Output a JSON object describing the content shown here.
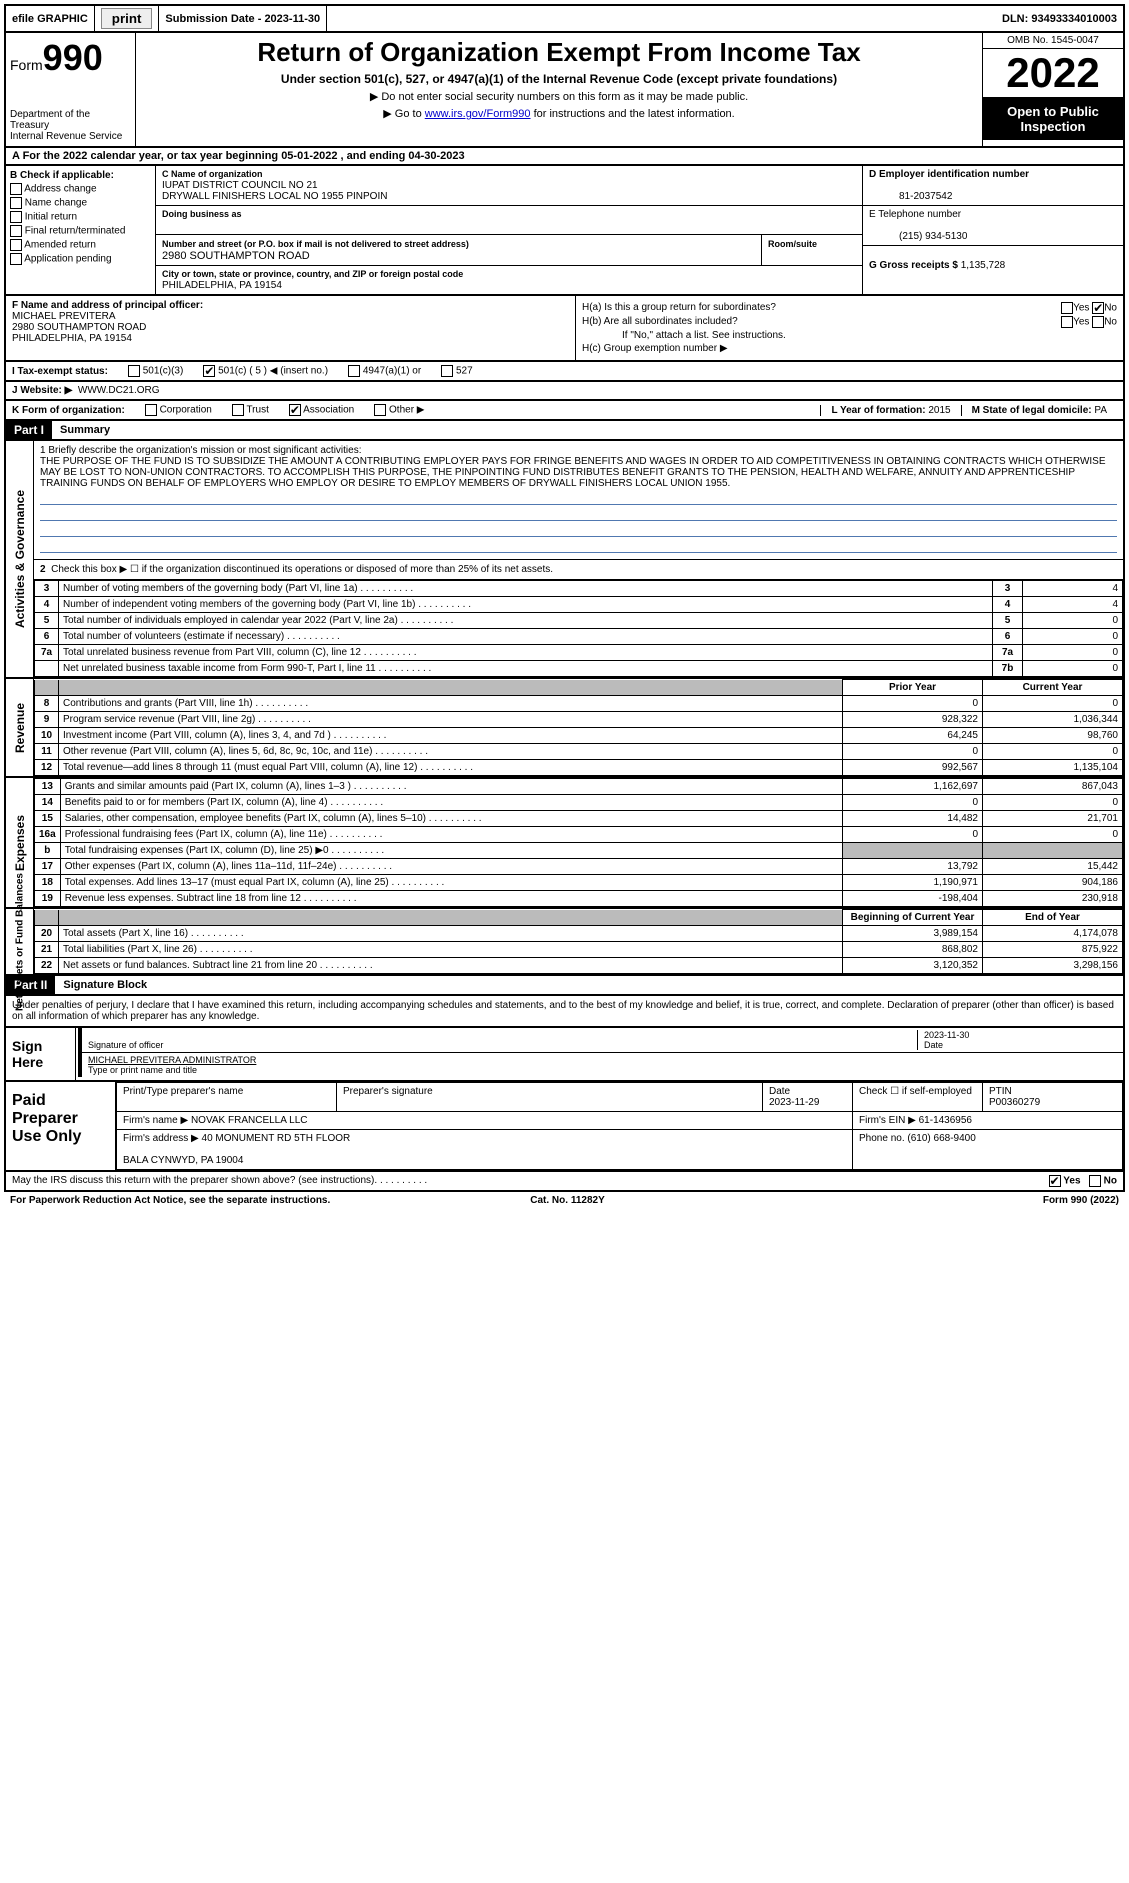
{
  "topbar": {
    "efile": "efile GRAPHIC",
    "print": "print",
    "subdate_label": "Submission Date - 2023-11-30",
    "dln": "DLN: 93493334010003"
  },
  "header": {
    "form": "Form",
    "num": "990",
    "title": "Return of Organization Exempt From Income Tax",
    "sub": "Under section 501(c), 527, or 4947(a)(1) of the Internal Revenue Code (except private foundations)",
    "note1": "▶ Do not enter social security numbers on this form as it may be made public.",
    "note2_pre": "▶ Go to ",
    "note2_link": "www.irs.gov/Form990",
    "note2_post": " for instructions and the latest information.",
    "dept": "Department of the Treasury\nInternal Revenue Service",
    "omb": "OMB No. 1545-0047",
    "year": "2022",
    "open": "Open to Public Inspection"
  },
  "rowA": "A  For the 2022 calendar year, or tax year beginning 05-01-2022   , and ending 04-30-2023",
  "B": {
    "label": "B Check if applicable:",
    "addr": "Address change",
    "name": "Name change",
    "initial": "Initial return",
    "final": "Final return/terminated",
    "amend": "Amended return",
    "app": "Application pending"
  },
  "C": {
    "label": "C Name of organization",
    "name": "IUPAT DISTRICT COUNCIL NO 21\nDRYWALL FINISHERS LOCAL NO 1955 PINPOIN",
    "dba_label": "Doing business as",
    "dba": "",
    "addr_label": "Number and street (or P.O. box if mail is not delivered to street address)",
    "room_label": "Room/suite",
    "addr": "2980 SOUTHAMPTON ROAD",
    "city_label": "City or town, state or province, country, and ZIP or foreign postal code",
    "city": "PHILADELPHIA, PA  19154"
  },
  "D": {
    "label": "D Employer identification number",
    "val": "81-2037542"
  },
  "E": {
    "label": "E Telephone number",
    "val": "(215) 934-5130"
  },
  "G": {
    "label": "G Gross receipts $",
    "val": "1,135,728"
  },
  "F": {
    "label": "F  Name and address of principal officer:",
    "name": "MICHAEL PREVITERA",
    "addr": "2980 SOUTHAMPTON ROAD\nPHILADELPHIA, PA  19154"
  },
  "H": {
    "a": "H(a)  Is this a group return for subordinates?",
    "b": "H(b)  Are all subordinates included?",
    "note": "If \"No,\" attach a list. See instructions.",
    "c": "H(c)  Group exemption number ▶"
  },
  "I": {
    "label": "I   Tax-exempt status:",
    "c3": "501(c)(3)",
    "c_pre": "501(c) (",
    "c_val": "5",
    "c_post": ") ◀ (insert no.)",
    "a1": "4947(a)(1) or",
    "s527": "527"
  },
  "J": {
    "label": "J   Website: ▶",
    "val": "WWW.DC21.ORG"
  },
  "K": {
    "label": "K Form of organization:",
    "corp": "Corporation",
    "trust": "Trust",
    "assoc": "Association",
    "other": "Other ▶"
  },
  "L": {
    "label": "L Year of formation:",
    "val": "2015"
  },
  "M": {
    "label": "M State of legal domicile:",
    "val": "PA"
  },
  "part1": {
    "hdr": "Part I",
    "title": "Summary",
    "mission_label": "1   Briefly describe the organization's mission or most significant activities:",
    "mission": "THE PURPOSE OF THE FUND IS TO SUBSIDIZE THE AMOUNT A CONTRIBUTING EMPLOYER PAYS FOR FRINGE BENEFITS AND WAGES IN ORDER TO AID COMPETITIVENESS IN OBTAINING CONTRACTS WHICH OTHERWISE MAY BE LOST TO NON-UNION CONTRACTORS. TO ACCOMPLISH THIS PURPOSE, THE PINPOINTING FUND DISTRIBUTES BENEFIT GRANTS TO THE PENSION, HEALTH AND WELFARE, ANNUITY AND APPRENTICESHIP TRAINING FUNDS ON BEHALF OF EMPLOYERS WHO EMPLOY OR DESIRE TO EMPLOY MEMBERS OF DRYWALL FINISHERS LOCAL UNION 1955."
  },
  "gov": {
    "vlabel": "Activities & Governance",
    "l2": "Check this box ▶ ☐ if the organization discontinued its operations or disposed of more than 25% of its net assets.",
    "rows": [
      {
        "n": "3",
        "desc": "Number of voting members of the governing body (Part VI, line 1a)",
        "box": "3",
        "val": "4"
      },
      {
        "n": "4",
        "desc": "Number of independent voting members of the governing body (Part VI, line 1b)",
        "box": "4",
        "val": "4"
      },
      {
        "n": "5",
        "desc": "Total number of individuals employed in calendar year 2022 (Part V, line 2a)",
        "box": "5",
        "val": "0"
      },
      {
        "n": "6",
        "desc": "Total number of volunteers (estimate if necessary)",
        "box": "6",
        "val": "0"
      },
      {
        "n": "7a",
        "desc": "Total unrelated business revenue from Part VIII, column (C), line 12",
        "box": "7a",
        "val": "0"
      },
      {
        "n": "",
        "desc": "Net unrelated business taxable income from Form 990-T, Part I, line 11",
        "box": "7b",
        "val": "0"
      }
    ]
  },
  "rev": {
    "vlabel": "Revenue",
    "hdr_prior": "Prior Year",
    "hdr_curr": "Current Year",
    "rows": [
      {
        "n": "8",
        "desc": "Contributions and grants (Part VIII, line 1h)",
        "p": "0",
        "c": "0"
      },
      {
        "n": "9",
        "desc": "Program service revenue (Part VIII, line 2g)",
        "p": "928,322",
        "c": "1,036,344"
      },
      {
        "n": "10",
        "desc": "Investment income (Part VIII, column (A), lines 3, 4, and 7d )",
        "p": "64,245",
        "c": "98,760"
      },
      {
        "n": "11",
        "desc": "Other revenue (Part VIII, column (A), lines 5, 6d, 8c, 9c, 10c, and 11e)",
        "p": "0",
        "c": "0"
      },
      {
        "n": "12",
        "desc": "Total revenue—add lines 8 through 11 (must equal Part VIII, column (A), line 12)",
        "p": "992,567",
        "c": "1,135,104"
      }
    ]
  },
  "exp": {
    "vlabel": "Expenses",
    "rows": [
      {
        "n": "13",
        "desc": "Grants and similar amounts paid (Part IX, column (A), lines 1–3 )",
        "p": "1,162,697",
        "c": "867,043"
      },
      {
        "n": "14",
        "desc": "Benefits paid to or for members (Part IX, column (A), line 4)",
        "p": "0",
        "c": "0"
      },
      {
        "n": "15",
        "desc": "Salaries, other compensation, employee benefits (Part IX, column (A), lines 5–10)",
        "p": "14,482",
        "c": "21,701"
      },
      {
        "n": "16a",
        "desc": "Professional fundraising fees (Part IX, column (A), line 11e)",
        "p": "0",
        "c": "0"
      },
      {
        "n": "b",
        "desc": "Total fundraising expenses (Part IX, column (D), line 25) ▶0",
        "p": "",
        "c": "",
        "grey": true
      },
      {
        "n": "17",
        "desc": "Other expenses (Part IX, column (A), lines 11a–11d, 11f–24e)",
        "p": "13,792",
        "c": "15,442"
      },
      {
        "n": "18",
        "desc": "Total expenses. Add lines 13–17 (must equal Part IX, column (A), line 25)",
        "p": "1,190,971",
        "c": "904,186"
      },
      {
        "n": "19",
        "desc": "Revenue less expenses. Subtract line 18 from line 12",
        "p": "-198,404",
        "c": "230,918"
      }
    ]
  },
  "net": {
    "vlabel": "Net Assets or Fund Balances",
    "hdr_beg": "Beginning of Current Year",
    "hdr_end": "End of Year",
    "rows": [
      {
        "n": "20",
        "desc": "Total assets (Part X, line 16)",
        "p": "3,989,154",
        "c": "4,174,078"
      },
      {
        "n": "21",
        "desc": "Total liabilities (Part X, line 26)",
        "p": "868,802",
        "c": "875,922"
      },
      {
        "n": "22",
        "desc": "Net assets or fund balances. Subtract line 21 from line 20",
        "p": "3,120,352",
        "c": "3,298,156"
      }
    ]
  },
  "part2": {
    "hdr": "Part II",
    "title": "Signature Block",
    "decl": "Under penalties of perjury, I declare that I have examined this return, including accompanying schedules and statements, and to the best of my knowledge and belief, it is true, correct, and complete. Declaration of preparer (other than officer) is based on all information of which preparer has any knowledge."
  },
  "sign": {
    "label": "Sign Here",
    "sig_label": "Signature of officer",
    "date_label": "Date",
    "date": "2023-11-30",
    "name": "MICHAEL PREVITERA  ADMINISTRATOR",
    "name_label": "Type or print name and title"
  },
  "paid": {
    "label": "Paid Preparer Use Only",
    "prep_label": "Print/Type preparer's name",
    "prep_sig": "Preparer's signature",
    "date_label": "Date",
    "date": "2023-11-29",
    "self": "Check ☐ if self-employed",
    "ptin_label": "PTIN",
    "ptin": "P00360279",
    "firm_label": "Firm's name    ▶",
    "firm": "NOVAK FRANCELLA LLC",
    "ein_label": "Firm's EIN ▶",
    "ein": "61-1436956",
    "addr_label": "Firm's address ▶",
    "addr": "40 MONUMENT RD 5TH FLOOR\n\nBALA CYNWYD, PA  19004",
    "phone_label": "Phone no.",
    "phone": "(610) 668-9400"
  },
  "footer": {
    "discuss": "May the IRS discuss this return with the preparer shown above? (see instructions)",
    "yes": "Yes",
    "no": "No",
    "pra": "For Paperwork Reduction Act Notice, see the separate instructions.",
    "cat": "Cat. No. 11282Y",
    "form": "Form 990 (2022)"
  },
  "colors": {
    "link": "#0000cc",
    "blank_line": "#5078b0"
  }
}
